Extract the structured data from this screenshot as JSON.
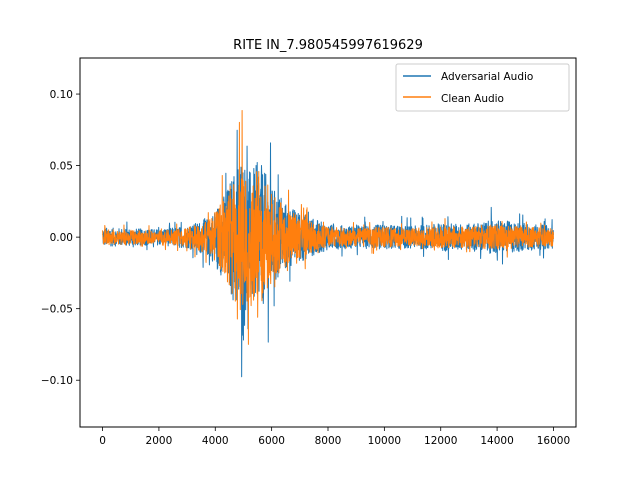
{
  "chart_data": {
    "type": "line",
    "title": "RITE IN_7.980545997619629",
    "xlabel": "",
    "ylabel": "",
    "xlim": [
      -800,
      16800
    ],
    "ylim": [
      -0.1327,
      0.1252
    ],
    "xticks": [
      0,
      2000,
      4000,
      6000,
      8000,
      10000,
      12000,
      14000,
      16000
    ],
    "xtick_labels": [
      "0",
      "2000",
      "4000",
      "6000",
      "8000",
      "10000",
      "12000",
      "14000",
      "16000"
    ],
    "yticks": [
      -0.1,
      -0.05,
      0.0,
      0.05,
      0.1
    ],
    "ytick_labels": [
      "−0.10",
      "−0.05",
      "0.00",
      "0.05",
      "0.10"
    ],
    "grid": false,
    "legend_position": "upper right",
    "n_samples": 16000,
    "envelope_note_x": [
      0,
      1000,
      2000,
      3000,
      3800,
      4400,
      4900,
      5200,
      5600,
      6000,
      6600,
      7400,
      8000,
      9000,
      10000,
      11000,
      12000,
      13000,
      14000,
      15000,
      16000
    ],
    "series": [
      {
        "name": "Adversarial Audio",
        "color": "#1f77b4",
        "amplitude_envelope": [
          0.012,
          0.011,
          0.01,
          0.014,
          0.025,
          0.06,
          0.11,
          0.085,
          0.095,
          0.065,
          0.04,
          0.025,
          0.016,
          0.014,
          0.016,
          0.014,
          0.018,
          0.017,
          0.022,
          0.018,
          0.014
        ]
      },
      {
        "name": "Clean Audio",
        "color": "#ff7f0e",
        "amplitude_envelope": [
          0.01,
          0.009,
          0.008,
          0.012,
          0.022,
          0.055,
          0.1,
          0.078,
          0.088,
          0.058,
          0.034,
          0.02,
          0.012,
          0.011,
          0.013,
          0.011,
          0.014,
          0.013,
          0.016,
          0.013,
          0.011
        ]
      }
    ]
  }
}
